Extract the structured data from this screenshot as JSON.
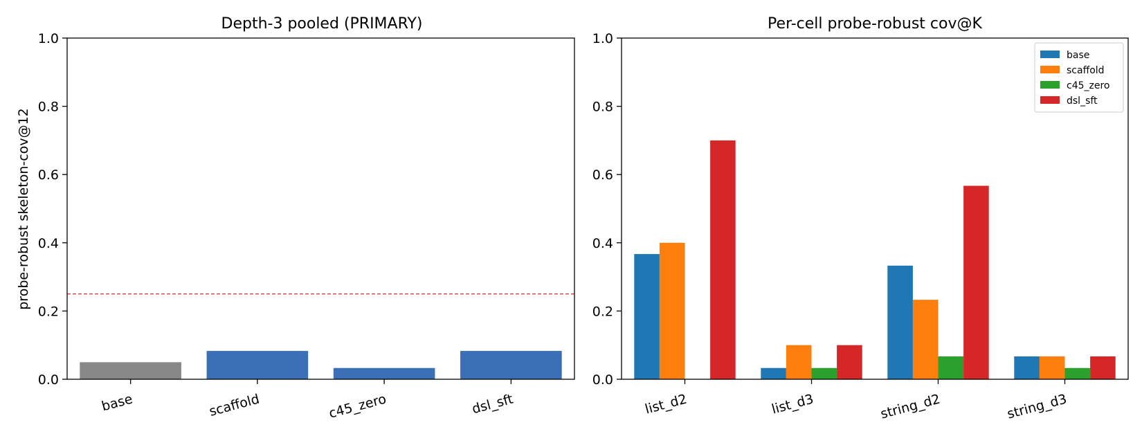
{
  "chart_data": [
    {
      "type": "bar",
      "title": "Depth-3 pooled (PRIMARY)",
      "xlabel": "",
      "ylabel": "probe-robust skeleton-cov@12",
      "ylim": [
        0,
        1.0
      ],
      "yticks": [
        "0.0",
        "0.2",
        "0.4",
        "0.6",
        "0.8",
        "1.0"
      ],
      "categories": [
        "base",
        "scaffold",
        "c45_zero",
        "dsl_sft"
      ],
      "values": [
        0.05,
        0.083,
        0.033,
        0.083
      ],
      "colors": [
        "#888888",
        "#3b6fb6",
        "#3b6fb6",
        "#3b6fb6"
      ],
      "reference_line": {
        "y": 0.25,
        "style": "dashed",
        "color": "#d62728"
      },
      "grid": false
    },
    {
      "type": "bar",
      "title": "Per-cell probe-robust cov@K",
      "xlabel": "",
      "ylabel": "",
      "ylim": [
        0,
        1.0
      ],
      "yticks": [
        "0.0",
        "0.2",
        "0.4",
        "0.6",
        "0.8",
        "1.0"
      ],
      "categories": [
        "list_d2",
        "list_d3",
        "string_d2",
        "string_d3"
      ],
      "series": [
        {
          "name": "base",
          "color": "#1f77b4",
          "values": [
            0.367,
            0.033,
            0.333,
            0.067
          ]
        },
        {
          "name": "scaffold",
          "color": "#ff7f0e",
          "values": [
            0.4,
            0.1,
            0.233,
            0.067
          ]
        },
        {
          "name": "c45_zero",
          "color": "#2ca02c",
          "values": [
            0.0,
            0.033,
            0.067,
            0.033
          ]
        },
        {
          "name": "dsl_sft",
          "color": "#d62728",
          "values": [
            0.7,
            0.1,
            0.567,
            0.067
          ]
        }
      ],
      "legend": "top-right",
      "grid": false
    }
  ]
}
